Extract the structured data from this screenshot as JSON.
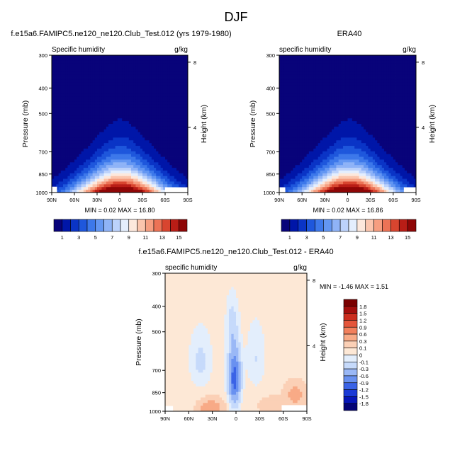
{
  "page": {
    "title": "DJF"
  },
  "palette": {
    "absolute": [
      "#08037a",
      "#0016a8",
      "#0a34c6",
      "#1e57dc",
      "#3d78ea",
      "#6396f2",
      "#8fb3f7",
      "#bcd2fb",
      "#e4eefd",
      "#fde8dc",
      "#fbc5ad",
      "#f69e80",
      "#ec7356",
      "#d8452f",
      "#b91d16",
      "#8e0606"
    ],
    "difference": [
      "#040477",
      "#0616b8",
      "#1a3ad6",
      "#3a63e6",
      "#6991f0",
      "#9ab8f6",
      "#c6dafb",
      "#e3eefc",
      "#fde8d6",
      "#fbd0b6",
      "#f8aa86",
      "#f2805c",
      "#e4553a",
      "#cb2d1e",
      "#a30e0c",
      "#7a0000"
    ]
  },
  "panels": [
    {
      "title": "f.e15a6.FAMIPC5.ne120_ne120.Club_Test.012 (yrs 1979-1980)",
      "left_label": "Specific humidity",
      "unit_label": "g/kg",
      "ylabel": "Pressure (mb)",
      "right_label": "Height (km)",
      "min_max": "MIN =  0.02  MAX = 16.80"
    },
    {
      "title": "ERA40",
      "left_label": "specific humidity",
      "unit_label": "g/kg",
      "ylabel": "Pressure (mb)",
      "right_label": "Height (km)",
      "min_max": "MIN =  0.02  MAX = 16.86"
    },
    {
      "title": "f.e15a6.FAMIPC5.ne120_ne120.Club_Test.012 - ERA40",
      "left_label": "specific humidity",
      "unit_label": "g/kg",
      "ylabel": "Pressure (mb)",
      "right_label": "Height (km)",
      "min_max": "MIN = -1.46  MAX =  1.51"
    }
  ],
  "chart_data": [
    {
      "type": "heatmap",
      "title": "f.e15a6.FAMIPC5.ne120_ne120.Club_Test.012 (yrs 1979-1980)",
      "xlabel": "",
      "ylabel": "Pressure (mb)",
      "x_ticks": [
        "90N",
        "60N",
        "30N",
        "0",
        "30S",
        "60S",
        "90S"
      ],
      "x_values": [
        90,
        60,
        30,
        0,
        -30,
        -60,
        -90
      ],
      "y_ticks": [
        300,
        400,
        500,
        700,
        850,
        1000
      ],
      "y_scale": "log",
      "ylim": [
        1000,
        300
      ],
      "right_axis": {
        "label": "Height (km)",
        "ticks": [
          8,
          4
        ]
      },
      "min": 0.02,
      "max": 16.8,
      "colorbar_labels": [
        "1",
        "3",
        "5",
        "7",
        "9",
        "11",
        "13",
        "15"
      ],
      "field": "specific humidity peaked near equator surface, decreasing with height and latitude"
    },
    {
      "type": "heatmap",
      "title": "ERA40",
      "xlabel": "",
      "ylabel": "Pressure (mb)",
      "x_ticks": [
        "90N",
        "60N",
        "30N",
        "0",
        "30S",
        "60S",
        "90S"
      ],
      "x_values": [
        90,
        60,
        30,
        0,
        -30,
        -60,
        -90
      ],
      "y_ticks": [
        300,
        400,
        500,
        700,
        850,
        1000
      ],
      "y_scale": "log",
      "ylim": [
        1000,
        300
      ],
      "right_axis": {
        "label": "Height (km)",
        "ticks": [
          8,
          4
        ]
      },
      "min": 0.02,
      "max": 16.86,
      "colorbar_labels": [
        "1",
        "3",
        "5",
        "7",
        "9",
        "11",
        "13",
        "15"
      ],
      "field": "specific humidity peaked near equator surface, decreasing with height and latitude"
    },
    {
      "type": "heatmap",
      "title": "f.e15a6.FAMIPC5.ne120_ne120.Club_Test.012 - ERA40",
      "xlabel": "",
      "ylabel": "Pressure (mb)",
      "x_ticks": [
        "90N",
        "60N",
        "30N",
        "0",
        "30S",
        "60S",
        "90S"
      ],
      "x_values": [
        90,
        60,
        30,
        0,
        -30,
        -60,
        -90
      ],
      "y_ticks": [
        300,
        400,
        500,
        700,
        850,
        1000
      ],
      "y_scale": "log",
      "ylim": [
        1000,
        300
      ],
      "right_axis": {
        "label": "Height (km)",
        "ticks": [
          8,
          4
        ]
      },
      "min": -1.46,
      "max": 1.51,
      "colorbar_labels": [
        "1.8",
        "1.5",
        "1.2",
        "0.9",
        "0.6",
        "0.3",
        "0.1",
        "0",
        "-0.1",
        "-0.3",
        "-0.6",
        "-0.9",
        "-1.2",
        "-1.5",
        "-1.8"
      ],
      "field": "difference; negative near equator mid-troposphere, positive near surface"
    }
  ]
}
